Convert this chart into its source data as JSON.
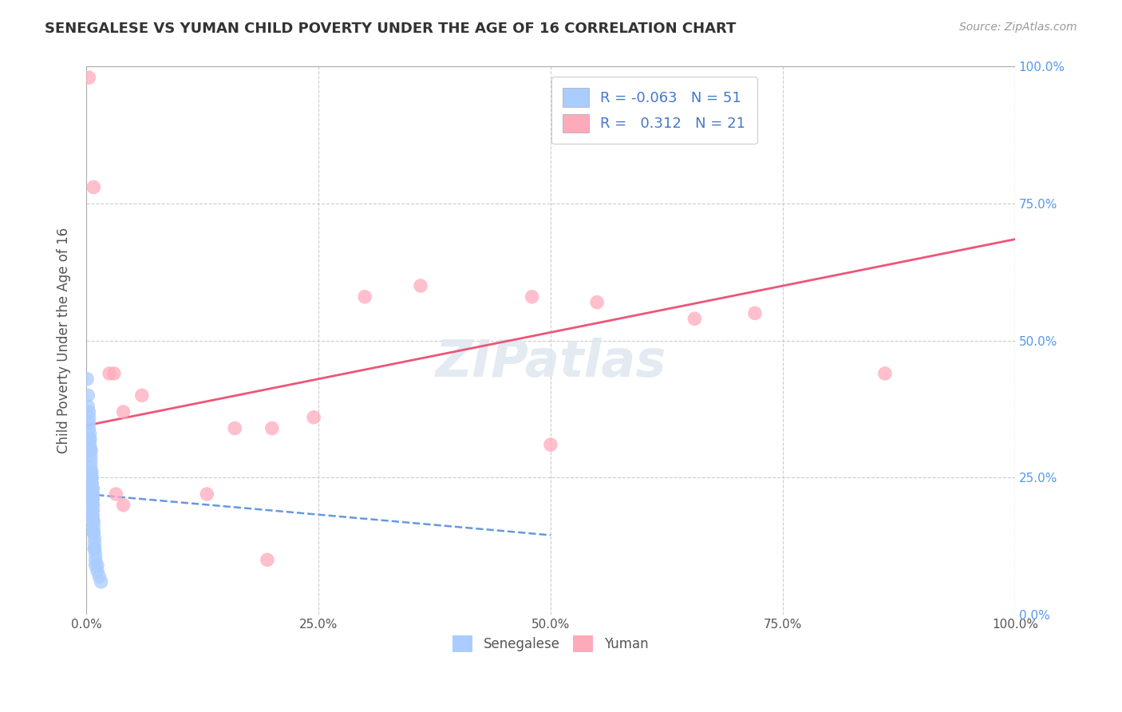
{
  "title": "SENEGALESE VS YUMAN CHILD POVERTY UNDER THE AGE OF 16 CORRELATION CHART",
  "source": "Source: ZipAtlas.com",
  "ylabel": "Child Poverty Under the Age of 16",
  "xlabel": "",
  "xlim": [
    0.0,
    1.0
  ],
  "ylim": [
    0.0,
    1.0
  ],
  "xticks": [
    0.0,
    0.25,
    0.5,
    0.75,
    1.0
  ],
  "yticks": [
    0.0,
    0.25,
    0.5,
    0.75,
    1.0
  ],
  "xticklabels": [
    "0.0%",
    "25.0%",
    "50.0%",
    "75.0%",
    "100.0%"
  ],
  "yticklabels_right": [
    "0.0%",
    "25.0%",
    "50.0%",
    "75.0%",
    "100.0%"
  ],
  "background_color": "#ffffff",
  "grid_color": "#cccccc",
  "watermark": "ZIPatlas",
  "senegalese_color": "#aaccff",
  "yuman_color": "#ffaabb",
  "senegalese_R": "-0.063",
  "senegalese_N": "51",
  "yuman_R": "0.312",
  "yuman_N": "21",
  "senegalese_line_color": "#6699dd",
  "yuman_line_color": "#ee5577",
  "title_color": "#333333",
  "senegalese_points": [
    [
      0.001,
      0.43
    ],
    [
      0.002,
      0.4
    ],
    [
      0.002,
      0.38
    ],
    [
      0.003,
      0.37
    ],
    [
      0.003,
      0.36
    ],
    [
      0.003,
      0.35
    ],
    [
      0.003,
      0.34
    ],
    [
      0.004,
      0.33
    ],
    [
      0.004,
      0.32
    ],
    [
      0.004,
      0.32
    ],
    [
      0.004,
      0.31
    ],
    [
      0.005,
      0.3
    ],
    [
      0.005,
      0.3
    ],
    [
      0.005,
      0.29
    ],
    [
      0.005,
      0.28
    ],
    [
      0.005,
      0.27
    ],
    [
      0.005,
      0.26
    ],
    [
      0.006,
      0.26
    ],
    [
      0.006,
      0.25
    ],
    [
      0.006,
      0.25
    ],
    [
      0.006,
      0.24
    ],
    [
      0.006,
      0.24
    ],
    [
      0.007,
      0.23
    ],
    [
      0.007,
      0.23
    ],
    [
      0.007,
      0.22
    ],
    [
      0.007,
      0.22
    ],
    [
      0.007,
      0.21
    ],
    [
      0.007,
      0.21
    ],
    [
      0.007,
      0.2
    ],
    [
      0.007,
      0.2
    ],
    [
      0.007,
      0.2
    ],
    [
      0.007,
      0.19
    ],
    [
      0.007,
      0.19
    ],
    [
      0.007,
      0.18
    ],
    [
      0.007,
      0.18
    ],
    [
      0.007,
      0.17
    ],
    [
      0.008,
      0.17
    ],
    [
      0.008,
      0.16
    ],
    [
      0.008,
      0.15
    ],
    [
      0.008,
      0.15
    ],
    [
      0.009,
      0.14
    ],
    [
      0.009,
      0.13
    ],
    [
      0.009,
      0.12
    ],
    [
      0.009,
      0.12
    ],
    [
      0.01,
      0.11
    ],
    [
      0.01,
      0.1
    ],
    [
      0.01,
      0.09
    ],
    [
      0.012,
      0.09
    ],
    [
      0.012,
      0.08
    ],
    [
      0.014,
      0.07
    ],
    [
      0.016,
      0.06
    ]
  ],
  "yuman_points": [
    [
      0.003,
      0.98
    ],
    [
      0.008,
      0.78
    ],
    [
      0.025,
      0.44
    ],
    [
      0.03,
      0.44
    ],
    [
      0.032,
      0.22
    ],
    [
      0.04,
      0.2
    ],
    [
      0.04,
      0.37
    ],
    [
      0.06,
      0.4
    ],
    [
      0.13,
      0.22
    ],
    [
      0.16,
      0.34
    ],
    [
      0.195,
      0.1
    ],
    [
      0.2,
      0.34
    ],
    [
      0.245,
      0.36
    ],
    [
      0.3,
      0.58
    ],
    [
      0.36,
      0.6
    ],
    [
      0.48,
      0.58
    ],
    [
      0.55,
      0.57
    ],
    [
      0.655,
      0.54
    ],
    [
      0.72,
      0.55
    ],
    [
      0.86,
      0.44
    ],
    [
      0.5,
      0.31
    ]
  ],
  "senegalese_trendline": [
    0.0,
    0.22,
    0.5,
    0.145
  ],
  "yuman_trendline": [
    0.0,
    0.345,
    1.0,
    0.685
  ]
}
